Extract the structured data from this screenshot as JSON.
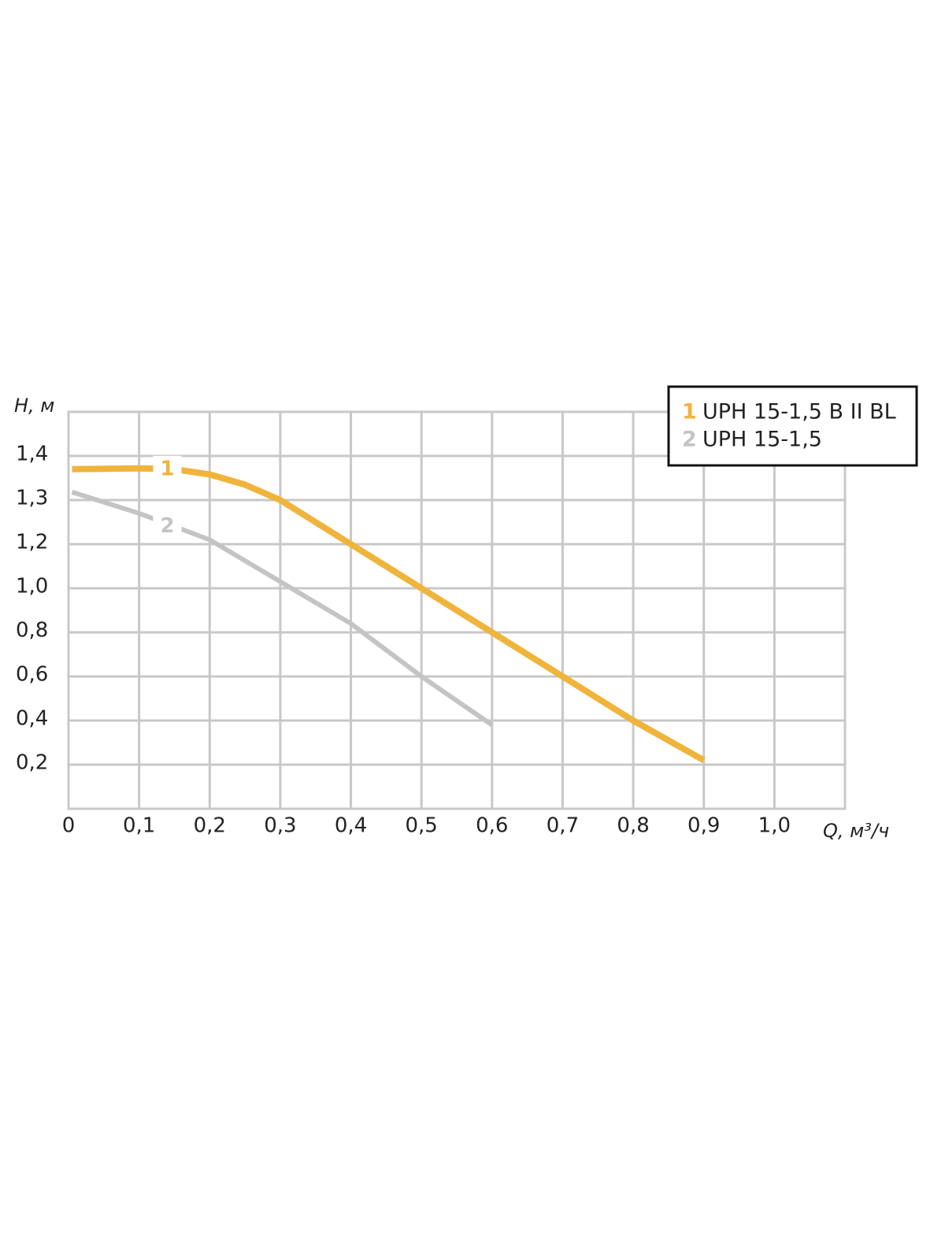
{
  "chart_data": {
    "type": "line",
    "y_label": "H, м",
    "x_label": "Q, м³/ч",
    "xlim": [
      0,
      1.1
    ],
    "xticks": [
      0,
      {
        "value": 0.1,
        "label": "0,1"
      },
      {
        "value": 0.2,
        "label": "0,2"
      },
      {
        "value": 0.3,
        "label": "0,3"
      },
      {
        "value": 0.4,
        "label": "0,4"
      },
      {
        "value": 0.5,
        "label": "0,5"
      },
      {
        "value": 0.6,
        "label": "0,6"
      },
      {
        "value": 0.7,
        "label": "0,7"
      },
      {
        "value": 0.8,
        "label": "0,8"
      },
      {
        "value": 0.9,
        "label": "0,9"
      },
      {
        "value": 1.0,
        "label": "1,0"
      }
    ],
    "ylim": [
      0,
      1.5
    ],
    "yticks": [
      {
        "value": 0.2,
        "label": "0,2"
      },
      {
        "value": 0.4,
        "label": "0,4"
      },
      {
        "value": 0.6,
        "label": "0,6"
      },
      {
        "value": 0.8,
        "label": "0,8"
      },
      {
        "value": 1.0,
        "label": "1,0"
      },
      {
        "value": 1.2,
        "label": "1,2"
      },
      {
        "value": 1.3,
        "label": "1,3"
      },
      {
        "value": 1.4,
        "label": "1,4"
      }
    ],
    "grid": true,
    "legend_position": "top-right",
    "series": [
      {
        "label": "1",
        "name": "UPH 15-1,5 B II BL",
        "color": "#f0b43c",
        "x": [
          0.005,
          0.1,
          0.15,
          0.2,
          0.25,
          0.3,
          0.35,
          0.4,
          0.5,
          0.6,
          0.7,
          0.8,
          0.9
        ],
        "values": [
          1.37,
          1.372,
          1.37,
          1.358,
          1.335,
          1.3,
          1.25,
          1.2,
          1.0,
          0.8,
          0.6,
          0.4,
          0.22
        ]
      },
      {
        "label": "2",
        "name": "UPH 15-1,5",
        "color": "#c4c4c4",
        "x": [
          0.005,
          0.1,
          0.15,
          0.2,
          0.3,
          0.4,
          0.5,
          0.6
        ],
        "values": [
          1.318,
          1.27,
          1.24,
          1.21,
          1.03,
          0.84,
          0.6,
          0.38
        ]
      }
    ]
  }
}
